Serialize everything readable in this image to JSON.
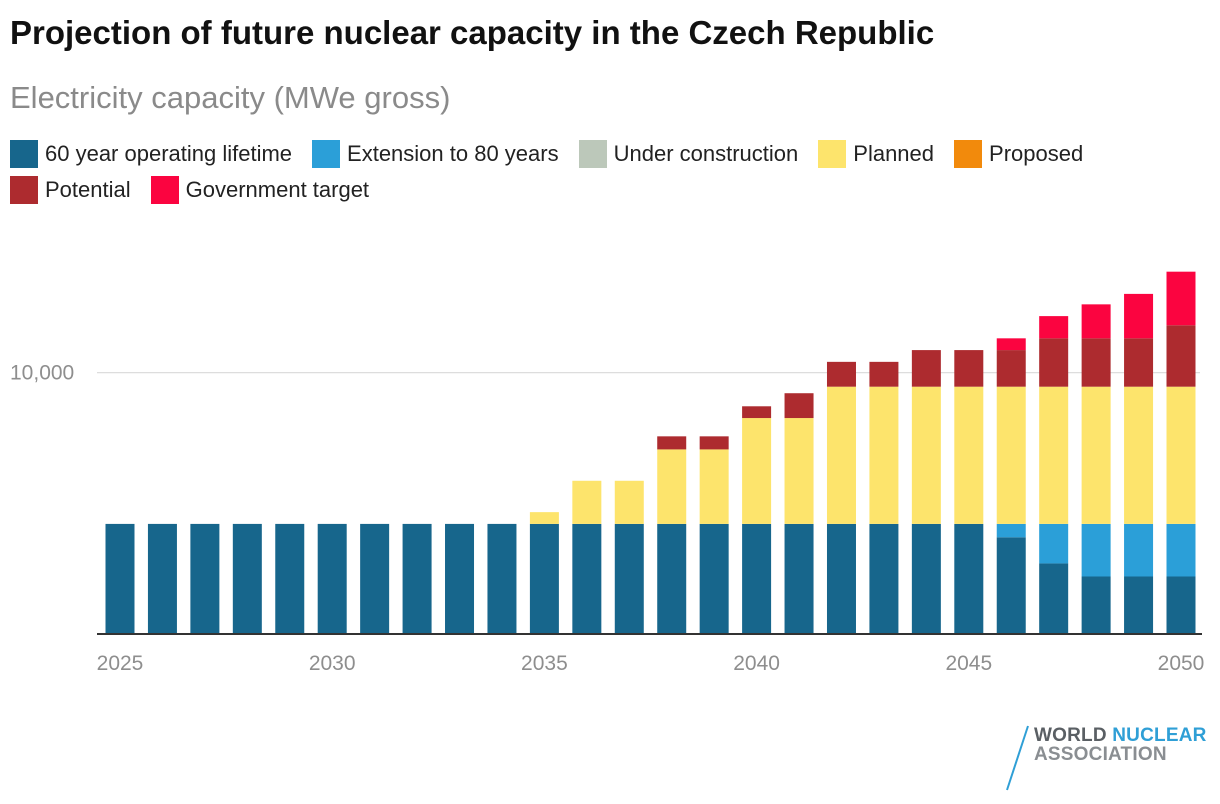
{
  "title": "Projection of future nuclear capacity in the Czech Republic",
  "subtitle": "Electricity capacity (MWe gross)",
  "legend": [
    {
      "label": "60 year operating lifetime",
      "color": "#17668c"
    },
    {
      "label": "Extension to 80 years",
      "color": "#2b9fd8"
    },
    {
      "label": "Under construction",
      "color": "#bcc8ba"
    },
    {
      "label": "Planned",
      "color": "#fde46c"
    },
    {
      "label": "Proposed",
      "color": "#f28a0c"
    },
    {
      "label": "Potential",
      "color": "#ad2b2f"
    },
    {
      "label": "Government target",
      "color": "#fb0440"
    }
  ],
  "logo": {
    "line1_a": "WORLD",
    "line1_b": "NUCLEAR",
    "line2": "ASSOCIATION"
  },
  "chart_data": {
    "type": "bar",
    "stacked": true,
    "categories": [
      2025,
      2026,
      2027,
      2028,
      2029,
      2030,
      2031,
      2032,
      2033,
      2034,
      2035,
      2036,
      2037,
      2038,
      2039,
      2040,
      2041,
      2042,
      2043,
      2044,
      2045,
      2046,
      2047,
      2048,
      2049,
      2050
    ],
    "x_tick_labels": [
      "2025",
      "2030",
      "2035",
      "2040",
      "2045",
      "2050"
    ],
    "y_tick_labels": [
      {
        "value": 10000,
        "label": "10,000"
      }
    ],
    "ylim": [
      0,
      14500
    ],
    "grid": "horizontal",
    "legend_position": "top",
    "series": [
      {
        "name": "60 year operating lifetime",
        "color": "#17668c",
        "values": [
          4212,
          4212,
          4212,
          4212,
          4212,
          4212,
          4212,
          4212,
          4212,
          4212,
          4212,
          4212,
          4212,
          4212,
          4212,
          4212,
          4212,
          4212,
          4212,
          4212,
          4212,
          3700,
          2700,
          2200,
          2200,
          2200
        ]
      },
      {
        "name": "Extension to 80 years",
        "color": "#2b9fd8",
        "values": [
          0,
          0,
          0,
          0,
          0,
          0,
          0,
          0,
          0,
          0,
          0,
          0,
          0,
          0,
          0,
          0,
          0,
          0,
          0,
          0,
          0,
          512,
          1512,
          2012,
          2012,
          2012
        ]
      },
      {
        "name": "Under construction",
        "color": "#bcc8ba",
        "values": [
          0,
          0,
          0,
          0,
          0,
          0,
          0,
          0,
          0,
          0,
          0,
          0,
          0,
          0,
          0,
          0,
          0,
          0,
          0,
          0,
          0,
          0,
          0,
          0,
          0,
          0
        ]
      },
      {
        "name": "Planned",
        "color": "#fde46c",
        "values": [
          0,
          0,
          0,
          0,
          0,
          0,
          0,
          0,
          0,
          0,
          450,
          1650,
          1650,
          2850,
          2850,
          4050,
          4050,
          5250,
          5250,
          5250,
          5250,
          5250,
          5250,
          5250,
          5250,
          5250
        ]
      },
      {
        "name": "Proposed",
        "color": "#f28a0c",
        "values": [
          0,
          0,
          0,
          0,
          0,
          0,
          0,
          0,
          0,
          0,
          0,
          0,
          0,
          0,
          0,
          0,
          0,
          0,
          0,
          0,
          0,
          0,
          0,
          0,
          0,
          0
        ]
      },
      {
        "name": "Potential",
        "color": "#ad2b2f",
        "values": [
          0,
          0,
          0,
          0,
          0,
          0,
          0,
          0,
          0,
          0,
          0,
          0,
          0,
          500,
          500,
          450,
          950,
          950,
          950,
          1400,
          1400,
          1400,
          1850,
          1850,
          1850,
          2350
        ]
      },
      {
        "name": "Government target",
        "color": "#fb0440",
        "values": [
          0,
          0,
          0,
          0,
          0,
          0,
          0,
          0,
          0,
          0,
          0,
          0,
          0,
          0,
          0,
          0,
          0,
          0,
          0,
          0,
          0,
          450,
          850,
          1300,
          1700,
          2050
        ]
      }
    ]
  }
}
